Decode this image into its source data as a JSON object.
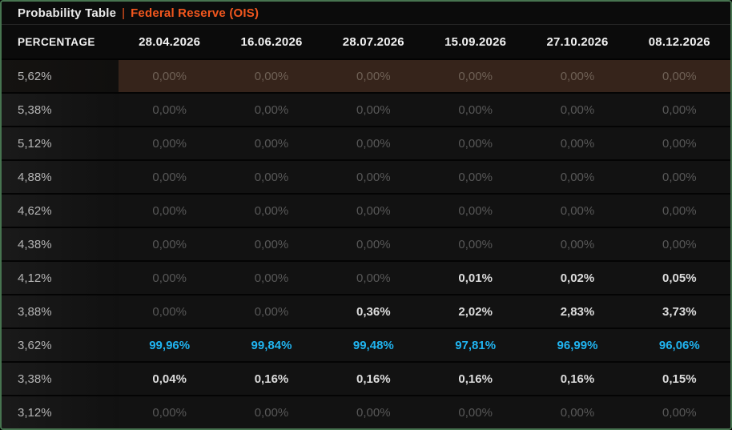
{
  "window": {
    "title": "Probability Table",
    "separator": "|",
    "subtitle": "Federal Reserve (OIS)"
  },
  "table": {
    "header": {
      "label": "PERCENTAGE",
      "dates": [
        "28.04.2026",
        "16.06.2026",
        "28.07.2026",
        "15.09.2026",
        "27.10.2026",
        "08.12.2026"
      ]
    },
    "rows": [
      {
        "label": "5,62%",
        "highlighted": true,
        "values": [
          "0,00%",
          "0,00%",
          "0,00%",
          "0,00%",
          "0,00%",
          "0,00%"
        ],
        "emphasis": [
          "zero",
          "zero",
          "zero",
          "zero",
          "zero",
          "zero"
        ]
      },
      {
        "label": "5,38%",
        "highlighted": false,
        "values": [
          "0,00%",
          "0,00%",
          "0,00%",
          "0,00%",
          "0,00%",
          "0,00%"
        ],
        "emphasis": [
          "zero",
          "zero",
          "zero",
          "zero",
          "zero",
          "zero"
        ]
      },
      {
        "label": "5,12%",
        "highlighted": false,
        "values": [
          "0,00%",
          "0,00%",
          "0,00%",
          "0,00%",
          "0,00%",
          "0,00%"
        ],
        "emphasis": [
          "zero",
          "zero",
          "zero",
          "zero",
          "zero",
          "zero"
        ]
      },
      {
        "label": "4,88%",
        "highlighted": false,
        "values": [
          "0,00%",
          "0,00%",
          "0,00%",
          "0,00%",
          "0,00%",
          "0,00%"
        ],
        "emphasis": [
          "zero",
          "zero",
          "zero",
          "zero",
          "zero",
          "zero"
        ]
      },
      {
        "label": "4,62%",
        "highlighted": false,
        "values": [
          "0,00%",
          "0,00%",
          "0,00%",
          "0,00%",
          "0,00%",
          "0,00%"
        ],
        "emphasis": [
          "zero",
          "zero",
          "zero",
          "zero",
          "zero",
          "zero"
        ]
      },
      {
        "label": "4,38%",
        "highlighted": false,
        "values": [
          "0,00%",
          "0,00%",
          "0,00%",
          "0,00%",
          "0,00%",
          "0,00%"
        ],
        "emphasis": [
          "zero",
          "zero",
          "zero",
          "zero",
          "zero",
          "zero"
        ]
      },
      {
        "label": "4,12%",
        "highlighted": false,
        "values": [
          "0,00%",
          "0,00%",
          "0,00%",
          "0,01%",
          "0,02%",
          "0,05%"
        ],
        "emphasis": [
          "zero",
          "zero",
          "zero",
          "white",
          "white",
          "white"
        ]
      },
      {
        "label": "3,88%",
        "highlighted": false,
        "values": [
          "0,00%",
          "0,00%",
          "0,36%",
          "2,02%",
          "2,83%",
          "3,73%"
        ],
        "emphasis": [
          "zero",
          "zero",
          "white",
          "white",
          "white",
          "white"
        ]
      },
      {
        "label": "3,62%",
        "highlighted": false,
        "values": [
          "99,96%",
          "99,84%",
          "99,48%",
          "97,81%",
          "96,99%",
          "96,06%"
        ],
        "emphasis": [
          "cyan",
          "cyan",
          "cyan",
          "cyan",
          "cyan",
          "cyan"
        ]
      },
      {
        "label": "3,38%",
        "highlighted": false,
        "values": [
          "0,04%",
          "0,16%",
          "0,16%",
          "0,16%",
          "0,16%",
          "0,15%"
        ],
        "emphasis": [
          "white",
          "white",
          "white",
          "white",
          "white",
          "white"
        ]
      },
      {
        "label": "3,12%",
        "highlighted": false,
        "values": [
          "0,00%",
          "0,00%",
          "0,00%",
          "0,00%",
          "0,00%",
          "0,00%"
        ],
        "emphasis": [
          "zero",
          "zero",
          "zero",
          "zero",
          "zero",
          "zero"
        ]
      }
    ]
  },
  "colors": {
    "accent_orange": "#f2571e",
    "accent_cyan": "#20b4f0",
    "highlight_brown": "#36241b",
    "border_green": "#477450",
    "zero_text": "#585858",
    "emphasis_text": "#dcdcdc",
    "background": "#0a0a0a"
  }
}
